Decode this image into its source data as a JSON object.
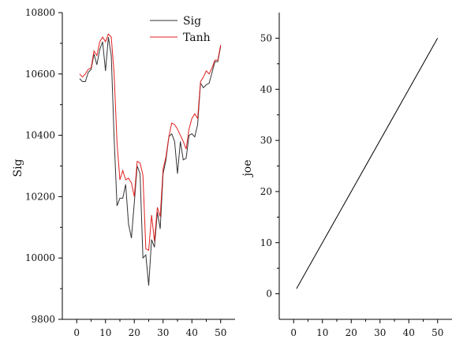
{
  "chart_data": [
    {
      "type": "line",
      "xlabel": "",
      "ylabel": "Sig",
      "xlim": [
        -5,
        55
      ],
      "ylim": [
        9800,
        10800
      ],
      "x_ticks": [
        0,
        10,
        20,
        30,
        40,
        50
      ],
      "y_ticks": [
        9800,
        10000,
        10200,
        10400,
        10600,
        10800
      ],
      "legend_position": "top-right",
      "series": [
        {
          "name": "Sig",
          "color": "#333333",
          "x": [
            1,
            2,
            3,
            4,
            5,
            6,
            7,
            8,
            9,
            10,
            11,
            12,
            13,
            14,
            15,
            16,
            17,
            18,
            19,
            20,
            21,
            22,
            23,
            24,
            25,
            26,
            27,
            28,
            29,
            30,
            31,
            32,
            33,
            34,
            35,
            36,
            37,
            38,
            39,
            40,
            41,
            42,
            43,
            44,
            45,
            46,
            47,
            48,
            49,
            50
          ],
          "y": [
            10585,
            10575,
            10575,
            10605,
            10615,
            10665,
            10630,
            10680,
            10705,
            10610,
            10720,
            10660,
            10390,
            10170,
            10195,
            10195,
            10240,
            10110,
            10065,
            10180,
            10300,
            10275,
            10000,
            10010,
            9910,
            10060,
            10035,
            10150,
            10095,
            10275,
            10320,
            10395,
            10405,
            10380,
            10275,
            10380,
            10320,
            10325,
            10400,
            10405,
            10395,
            10435,
            10570,
            10555,
            10565,
            10570,
            10605,
            10640,
            10640,
            10690
          ]
        },
        {
          "name": "Tanh",
          "color": "#e02020",
          "x": [
            1,
            2,
            3,
            4,
            5,
            6,
            7,
            8,
            9,
            10,
            11,
            12,
            13,
            14,
            15,
            16,
            17,
            18,
            19,
            20,
            21,
            22,
            23,
            24,
            25,
            26,
            27,
            28,
            29,
            30,
            31,
            32,
            33,
            34,
            35,
            36,
            37,
            38,
            39,
            40,
            41,
            42,
            43,
            44,
            45,
            46,
            47,
            48,
            49,
            50
          ],
          "y": [
            10600,
            10590,
            10600,
            10615,
            10620,
            10675,
            10660,
            10705,
            10720,
            10705,
            10730,
            10720,
            10600,
            10375,
            10255,
            10285,
            10255,
            10260,
            10245,
            10200,
            10315,
            10310,
            10270,
            10030,
            10025,
            10140,
            10055,
            10165,
            10135,
            10290,
            10330,
            10395,
            10440,
            10435,
            10420,
            10400,
            10380,
            10355,
            10420,
            10455,
            10470,
            10455,
            10575,
            10590,
            10610,
            10600,
            10620,
            10645,
            10645,
            10695
          ]
        }
      ]
    },
    {
      "type": "line",
      "xlabel": "",
      "ylabel": "joe",
      "xlim": [
        -5,
        55
      ],
      "ylim": [
        -5,
        55
      ],
      "x_ticks": [
        0,
        10,
        20,
        30,
        40,
        50
      ],
      "y_ticks": [
        0,
        10,
        20,
        30,
        40,
        50
      ],
      "series": [
        {
          "color": "#000000",
          "x": [
            1,
            50
          ],
          "y": [
            1,
            50
          ]
        }
      ]
    }
  ]
}
